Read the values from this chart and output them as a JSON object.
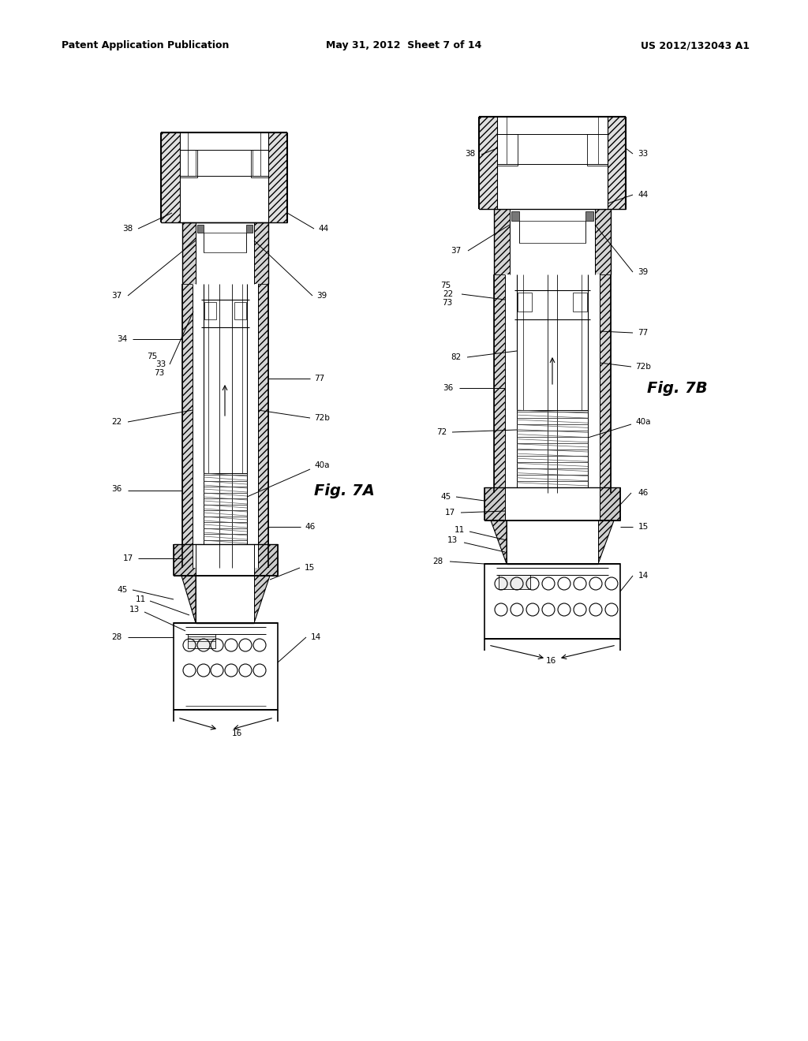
{
  "bg_color": "#ffffff",
  "header_left": "Patent Application Publication",
  "header_center": "May 31, 2012  Sheet 7 of 14",
  "header_right": "US 2012/132043 A1",
  "fig7A_label": "Fig. 7A",
  "fig7B_label": "Fig. 7B",
  "hatch_color": "#555555",
  "line_color": "#000000"
}
